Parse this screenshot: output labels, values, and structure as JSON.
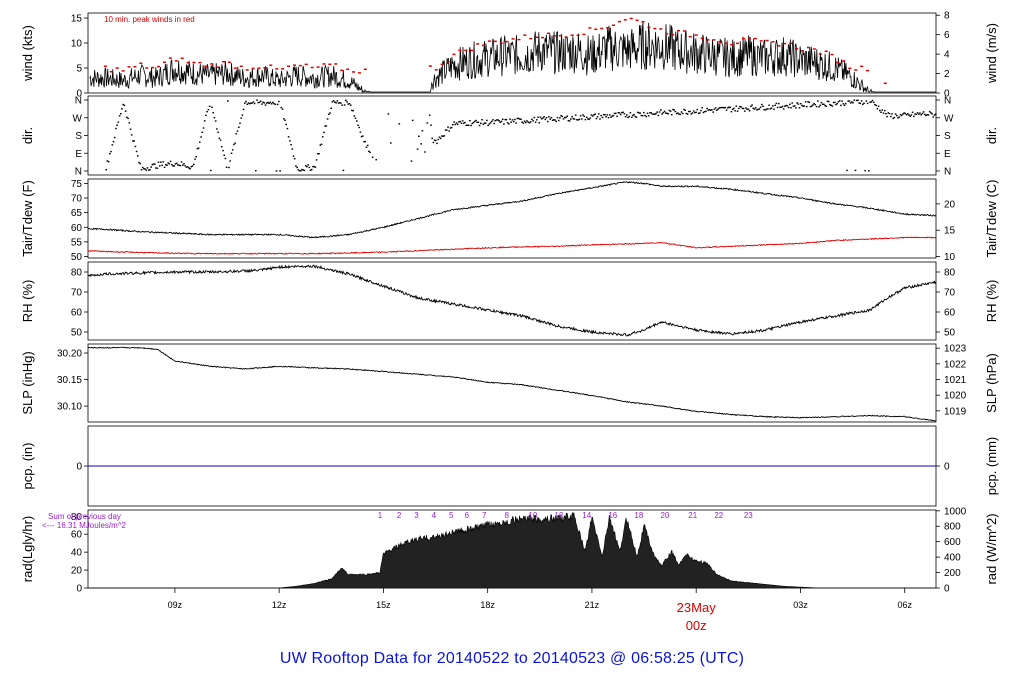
{
  "title": "UW Rooftop Data for 20140522  to  20140523 @ 06:58:25  (UTC)",
  "date_marker": {
    "day": "23May",
    "hour": "00z"
  },
  "x_ticks": [
    "09z",
    "12z",
    "15z",
    "18z",
    "21z",
    "",
    "03z",
    "06z"
  ],
  "colors": {
    "title": "#0a14d8",
    "red": "#dd0000",
    "purple": "#9b1fd1",
    "blue": "#0000cc",
    "black": "#000000"
  },
  "chart_data": [
    {
      "type": "line",
      "panel": "wind",
      "annotation": "10 min. peak winds in red",
      "ylabel_left": "wind (kts)",
      "ylabel_right": "wind (m/s)",
      "yticks_left": [
        "0",
        "5",
        "10",
        "15"
      ],
      "yticks_right": [
        "0",
        "2",
        "4",
        "6",
        "8"
      ],
      "ylim": [
        0,
        16
      ],
      "x": [
        7.0,
        7.5,
        8.0,
        8.5,
        9.0,
        9.5,
        10.0,
        10.5,
        11.0,
        11.5,
        12.0,
        12.5,
        13.0,
        13.5,
        14.0,
        14.5,
        15.0,
        15.5,
        16.0,
        16.5,
        17.0,
        17.5,
        18.0,
        18.5,
        19.0,
        19.5,
        20.0,
        20.5,
        21.0,
        21.5,
        22.0,
        22.5,
        23.0,
        23.5,
        24.0,
        24.5,
        25.0,
        25.5,
        26.0,
        26.5,
        27.0,
        27.5,
        28.0,
        28.5,
        29.0,
        29.5,
        30.0,
        30.5,
        30.9
      ],
      "series": [
        {
          "role": "wind",
          "values": [
            3,
            2.5,
            3.5,
            3,
            5,
            4,
            3.5,
            4,
            3,
            3.5,
            2.5,
            3.5,
            3,
            3.5,
            2.5,
            0,
            0,
            0,
            0,
            3,
            5.5,
            6.5,
            7,
            7.5,
            7.5,
            8.5,
            8,
            8.5,
            7.5,
            9,
            8.5,
            9.5,
            9.5,
            8.5,
            8,
            7.5,
            7,
            7.5,
            7,
            7.5,
            6.5,
            6,
            5,
            3,
            0,
            0,
            0,
            0,
            0
          ]
        },
        {
          "role": "peak",
          "values": [
            5,
            4.5,
            5.5,
            5,
            7,
            6,
            5.5,
            6,
            5,
            5.5,
            4.5,
            5.5,
            5,
            5.5,
            4.5,
            null,
            null,
            null,
            null,
            5,
            7.5,
            9,
            10,
            10.5,
            11,
            11.5,
            11.5,
            12,
            12.5,
            13.5,
            15,
            14,
            12.5,
            12,
            11.5,
            11,
            10,
            10.5,
            10,
            10,
            9,
            8.5,
            7,
            5,
            null,
            2.5,
            null,
            null,
            null
          ]
        }
      ]
    },
    {
      "type": "scatter",
      "panel": "direction",
      "ylabel_left": "dir.",
      "ylabel_right": "dir.",
      "yticks_left": [
        "N",
        "E",
        "S",
        "W",
        "N"
      ],
      "yticks_right": [
        "N",
        "E",
        "S",
        "W",
        "N"
      ],
      "ylim": [
        0,
        360
      ],
      "x": [
        7.0,
        7.5,
        8.0,
        8.5,
        9.0,
        9.5,
        10.0,
        10.5,
        11.0,
        11.5,
        12.0,
        12.5,
        13.0,
        13.5,
        14.0,
        14.5,
        15.0,
        15.5,
        16.0,
        16.5,
        17.0,
        17.5,
        18.0,
        18.5,
        19.0,
        19.5,
        20.0,
        20.5,
        21.0,
        21.5,
        22.0,
        22.5,
        23.0,
        23.5,
        24.0,
        24.5,
        25.0,
        25.5,
        26.0,
        26.5,
        27.0,
        27.5,
        28.0,
        28.5,
        29.0,
        29.5,
        30.0,
        30.5,
        30.9
      ],
      "values": [
        15,
        350,
        10,
        30,
        40,
        20,
        355,
        5,
        350,
        345,
        350,
        10,
        20,
        345,
        350,
        120,
        60,
        90,
        200,
        150,
        240,
        245,
        245,
        250,
        255,
        260,
        265,
        270,
        275,
        280,
        285,
        290,
        295,
        300,
        305,
        310,
        315,
        320,
        325,
        330,
        335,
        340,
        345,
        350,
        355,
        280,
        280,
        290,
        285
      ]
    },
    {
      "type": "line",
      "panel": "temperature",
      "ylabel_left": "Tair/Tdew (F)",
      "ylabel_right": "Tair/Tdew (C)",
      "yticks_left": [
        "50",
        "55",
        "60",
        "65",
        "70",
        "75"
      ],
      "yticks_right": [
        "10",
        "15",
        "20"
      ],
      "ylim": [
        49.5,
        76.5
      ],
      "x": [
        6.5,
        7.0,
        8.0,
        9.0,
        10.0,
        11.0,
        12.0,
        12.5,
        13.0,
        14.0,
        15.0,
        16.0,
        17.0,
        18.0,
        19.0,
        20.0,
        21.0,
        22.0,
        22.5,
        23.0,
        24.0,
        25.0,
        26.0,
        27.0,
        28.0,
        29.0,
        30.0,
        30.9
      ],
      "series": [
        {
          "name": "Tair",
          "values": [
            59.5,
            59.3,
            58.5,
            58,
            57.5,
            57.5,
            57.5,
            57,
            56.5,
            57.5,
            60,
            63,
            66,
            67.5,
            69,
            71.5,
            73.5,
            75.5,
            75,
            74,
            74,
            73,
            71.5,
            70,
            68,
            66.5,
            64.5,
            64
          ]
        },
        {
          "name": "Tdew",
          "values": [
            52,
            51.7,
            51.4,
            51.1,
            51,
            51,
            51,
            51,
            51,
            51.2,
            51.5,
            52,
            52.5,
            53,
            53.3,
            53.5,
            54,
            54.3,
            54.5,
            54.8,
            53,
            53.5,
            54,
            54.5,
            55.5,
            56,
            56.5,
            56.5
          ]
        }
      ]
    },
    {
      "type": "line",
      "panel": "rh",
      "ylabel_left": "RH (%)",
      "ylabel_right": "RH (%)",
      "yticks_left": [
        "50",
        "60",
        "70",
        "80"
      ],
      "yticks_right": [
        "50",
        "60",
        "70",
        "80"
      ],
      "ylim": [
        46,
        85
      ],
      "x": [
        6.5,
        7.0,
        8.0,
        9.0,
        10.0,
        11.0,
        11.5,
        12.0,
        13.0,
        14.0,
        15.0,
        16.0,
        17.0,
        18.0,
        19.0,
        20.0,
        21.0,
        22.0,
        22.5,
        23.0,
        24.0,
        25.0,
        26.0,
        27.0,
        28.0,
        29.0,
        29.5,
        30.0,
        30.9
      ],
      "series": [
        {
          "name": "RH",
          "values": [
            78,
            79,
            79.5,
            80,
            80,
            80.5,
            81,
            82.5,
            83,
            79,
            73,
            67,
            64,
            61,
            58,
            53,
            50,
            48.5,
            51,
            55,
            51,
            49,
            51,
            55,
            58,
            61,
            67,
            72,
            75
          ]
        }
      ]
    },
    {
      "type": "line",
      "panel": "slp",
      "ylabel_left": "SLP (inHg)",
      "ylabel_right": "SLP (hPa)",
      "yticks_left": [
        "30.10",
        "30.15",
        "30.20"
      ],
      "yticks_right": [
        "1019",
        "1020",
        "1021",
        "1022",
        "1023"
      ],
      "ylim": [
        30.07,
        30.217
      ],
      "x": [
        6.5,
        7.0,
        8.0,
        8.5,
        9.0,
        10.0,
        11.0,
        12.0,
        13.0,
        14.0,
        15.0,
        16.0,
        17.0,
        18.0,
        19.0,
        20.0,
        21.0,
        22.0,
        23.0,
        24.0,
        25.0,
        26.0,
        27.0,
        28.0,
        29.0,
        30.0,
        30.9
      ],
      "series": [
        {
          "name": "SLP",
          "values": [
            30.21,
            30.21,
            30.21,
            30.207,
            30.185,
            30.175,
            30.17,
            30.175,
            30.172,
            30.17,
            30.165,
            30.16,
            30.155,
            30.145,
            30.14,
            30.13,
            30.12,
            30.108,
            30.1,
            30.09,
            30.084,
            30.08,
            30.078,
            30.08,
            30.082,
            30.08,
            30.072
          ]
        }
      ]
    },
    {
      "type": "line",
      "panel": "precipitation",
      "ylabel_left": "pcp. (in)",
      "ylabel_right": "pcp. (mm)",
      "yticks_left": [
        "0"
      ],
      "yticks_right": [
        "0"
      ],
      "ylim": [
        -1,
        1
      ],
      "x": [
        6.5,
        30.9
      ],
      "series": [
        {
          "name": "pcp",
          "values": [
            0,
            0
          ]
        }
      ]
    },
    {
      "type": "area",
      "panel": "radiation",
      "ylabel_left": "rad(Lgly/hr)",
      "ylabel_right": "rad (W/m^2)",
      "yticks_left": [
        "0",
        "20",
        "40",
        "60",
        "80"
      ],
      "yticks_right": [
        "0",
        "200",
        "400",
        "600",
        "800",
        "1000"
      ],
      "ylim": [
        0,
        87
      ],
      "sum_label": "Sum of previous day",
      "sum_value": "<--- 16.31 MJoules/m^2",
      "hour_marks": [
        "1",
        "2",
        "3",
        "4",
        "5",
        "6",
        "7",
        "8",
        "10",
        "12",
        "14",
        "16",
        "18",
        "20",
        "21",
        "22",
        "23"
      ],
      "hour_marks_x": [
        14.9,
        15.45,
        15.95,
        16.45,
        16.95,
        17.4,
        17.9,
        18.55,
        19.3,
        20.05,
        20.85,
        21.6,
        22.35,
        23.1,
        23.9,
        24.65,
        25.5
      ],
      "x": [
        6.5,
        12.0,
        12.5,
        13.0,
        13.5,
        13.8,
        14.0,
        14.5,
        14.9,
        15.0,
        15.5,
        16.0,
        16.5,
        17.0,
        17.5,
        18.0,
        18.5,
        19.0,
        19.5,
        20.0,
        20.5,
        20.8,
        21.0,
        21.3,
        21.5,
        21.8,
        22.0,
        22.3,
        22.5,
        22.8,
        23.0,
        23.3,
        23.5,
        23.7,
        24.0,
        24.3,
        24.6,
        25.0,
        25.5,
        26.0,
        26.5,
        27.0,
        27.5,
        28.0,
        30.9
      ],
      "values": [
        0,
        0,
        2,
        5,
        10,
        22,
        15,
        15,
        17,
        38,
        48,
        55,
        57,
        62,
        66,
        70,
        74,
        77,
        77,
        78,
        80,
        40,
        78,
        35,
        80,
        40,
        78,
        35,
        70,
        35,
        25,
        40,
        25,
        38,
        30,
        28,
        15,
        8,
        6,
        4,
        2,
        1,
        0,
        0,
        0
      ]
    }
  ]
}
